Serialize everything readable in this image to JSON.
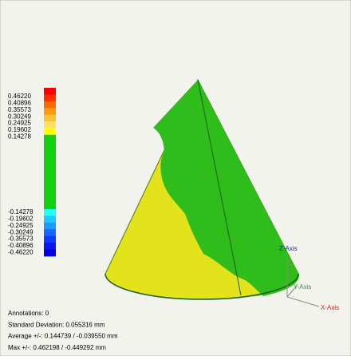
{
  "legend": {
    "upper": [
      "0.46220",
      "0.40896",
      "0.35573",
      "0.30249",
      "0.24925",
      "0.19602",
      "0.14278"
    ],
    "lower": [
      "-0.14278",
      "-0.19602",
      "-0.24925",
      "-0.30249",
      "-0.35573",
      "-0.40896",
      "-0.46220"
    ]
  },
  "axes": {
    "z": "Z-Axis",
    "y": "Y-Axis",
    "x": "X-Axis"
  },
  "stats": [
    "Annotations: 0",
    "Standard Deviation: 0.055316 mm",
    "Average +/-: 0.144739 / -0.039550 mm",
    "Max +/-: 0.462198 / -0.449292 mm"
  ]
}
